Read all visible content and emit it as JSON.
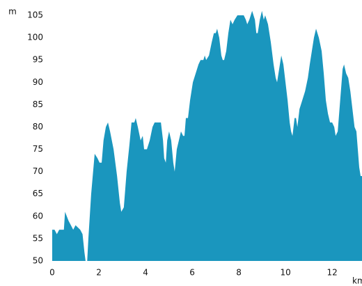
{
  "chart_data": {
    "type": "area",
    "y_label": "m",
    "x_label": "km",
    "color": "#1a96be",
    "x": [
      0,
      0.1,
      0.2,
      0.3,
      0.5,
      0.55,
      0.7,
      0.8,
      0.9,
      1.0,
      1.2,
      1.3,
      1.38,
      1.43,
      1.5,
      1.55,
      1.67,
      1.82,
      1.94,
      2.03,
      2.12,
      2.2,
      2.3,
      2.39,
      2.48,
      2.63,
      2.78,
      2.9,
      2.96,
      3.07,
      3.19,
      3.31,
      3.4,
      3.52,
      3.58,
      3.67,
      3.79,
      3.88,
      3.94,
      4.06,
      4.18,
      4.3,
      4.39,
      4.66,
      4.75,
      4.8,
      4.87,
      4.93,
      5.01,
      5.1,
      5.19,
      5.25,
      5.34,
      5.43,
      5.52,
      5.61,
      5.67,
      5.73,
      5.82,
      5.91,
      6.03,
      6.15,
      6.27,
      6.36,
      6.48,
      6.54,
      6.6,
      6.72,
      6.84,
      6.93,
      7.01,
      7.07,
      7.16,
      7.25,
      7.31,
      7.37,
      7.46,
      7.55,
      7.64,
      7.73,
      7.82,
      7.94,
      8.21,
      8.3,
      8.36,
      8.45,
      8.57,
      8.69,
      8.75,
      8.81,
      8.9,
      8.99,
      9.07,
      9.13,
      9.25,
      9.37,
      9.49,
      9.58,
      9.64,
      9.73,
      9.82,
      9.91,
      10.0,
      10.09,
      10.18,
      10.24,
      10.3,
      10.39,
      10.45,
      10.51,
      10.6,
      10.72,
      10.84,
      10.96,
      11.04,
      11.13,
      11.22,
      11.31,
      11.43,
      11.55,
      11.64,
      11.73,
      11.82,
      11.91,
      12.0,
      12.09,
      12.15,
      12.24,
      12.33,
      12.39,
      12.45,
      12.51,
      12.6,
      12.69,
      12.78,
      12.87,
      12.96,
      13.04,
      13.1,
      13.16,
      13.22,
      13.28
    ],
    "values": [
      57,
      57,
      56,
      57,
      57,
      61,
      59,
      58,
      57,
      58,
      57,
      56,
      52,
      50,
      50,
      55,
      65,
      74,
      73,
      72,
      72,
      77,
      80,
      81,
      79,
      75,
      69,
      63,
      61,
      62,
      70,
      76,
      81,
      81,
      82,
      80,
      77,
      78,
      75,
      75,
      77,
      80,
      81,
      81,
      77,
      73,
      72,
      77,
      79,
      77,
      72,
      70,
      75,
      77,
      79,
      78,
      78,
      82,
      82,
      86,
      90,
      92,
      94,
      95,
      95,
      96,
      95,
      96,
      99,
      101,
      101,
      102,
      100,
      96,
      95,
      95,
      97,
      101,
      104,
      103,
      104,
      105,
      105,
      104,
      103,
      104,
      106,
      104,
      101,
      101,
      104,
      106,
      104,
      105,
      103,
      99,
      94,
      91,
      90,
      93,
      96,
      94,
      90,
      86,
      81,
      79,
      78,
      82,
      82,
      80,
      84,
      86,
      88,
      91,
      94,
      97,
      100,
      102,
      100,
      97,
      92,
      86,
      83,
      81,
      81,
      80,
      78,
      79,
      85,
      89,
      93,
      94,
      92,
      91,
      88,
      84,
      80,
      79,
      75,
      71,
      69,
      69
    ],
    "xlim": [
      0,
      13.28
    ],
    "ylim": [
      50,
      106
    ],
    "xticks": [
      0,
      2,
      4,
      6,
      8,
      10,
      12
    ],
    "yticks": [
      50,
      55,
      60,
      65,
      70,
      75,
      80,
      85,
      90,
      95,
      100,
      105
    ]
  }
}
